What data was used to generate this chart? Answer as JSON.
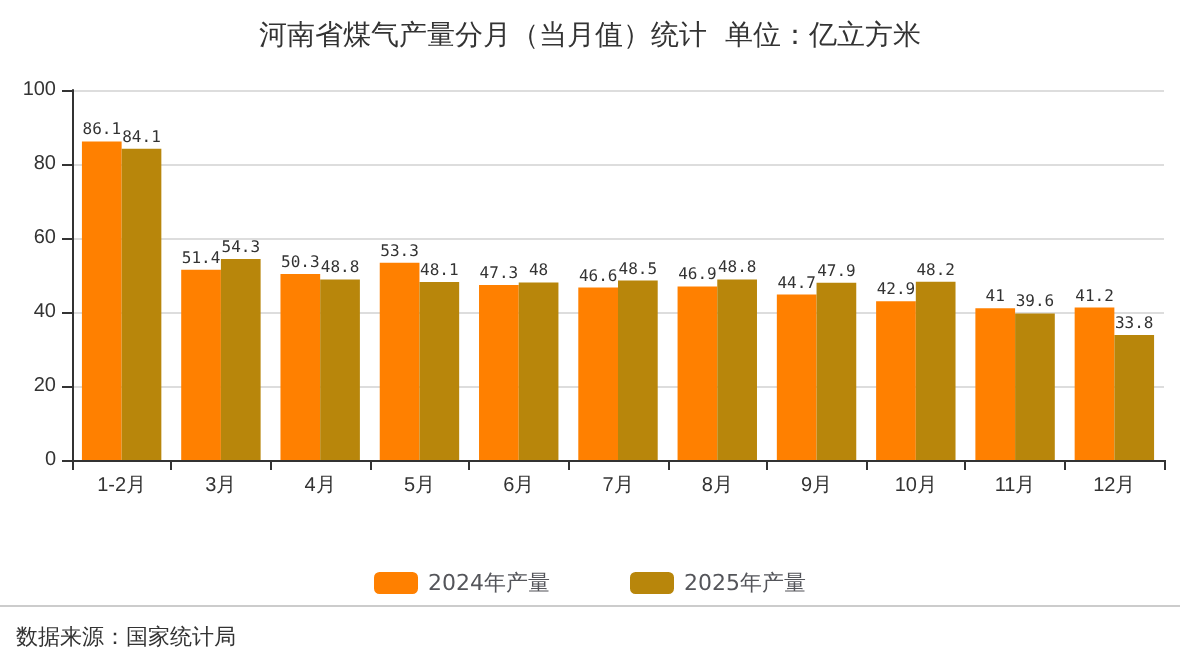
{
  "chart_data": {
    "type": "bar",
    "title": "河南省煤气产量分月（当月值）统计  单位：亿立方米",
    "categories": [
      "1-2月",
      "3月",
      "4月",
      "5月",
      "6月",
      "7月",
      "8月",
      "9月",
      "10月",
      "11月",
      "12月"
    ],
    "series": [
      {
        "name": "2024年产量",
        "color": "#ff8000",
        "values": [
          86.1,
          51.4,
          50.3,
          53.3,
          47.3,
          46.6,
          46.9,
          44.7,
          42.9,
          41,
          41.2
        ]
      },
      {
        "name": "2025年产量",
        "color": "#b8860b",
        "values": [
          84.1,
          54.3,
          48.8,
          48.1,
          48,
          48.5,
          48.8,
          47.9,
          48.2,
          39.6,
          33.8
        ]
      }
    ],
    "ylim": [
      0,
      100
    ],
    "yticks": [
      0,
      20,
      40,
      60,
      80,
      100
    ],
    "grid": "y",
    "legend": "bottom",
    "data_labels": true,
    "annotations": [
      "数据来源：国家统计局"
    ]
  }
}
